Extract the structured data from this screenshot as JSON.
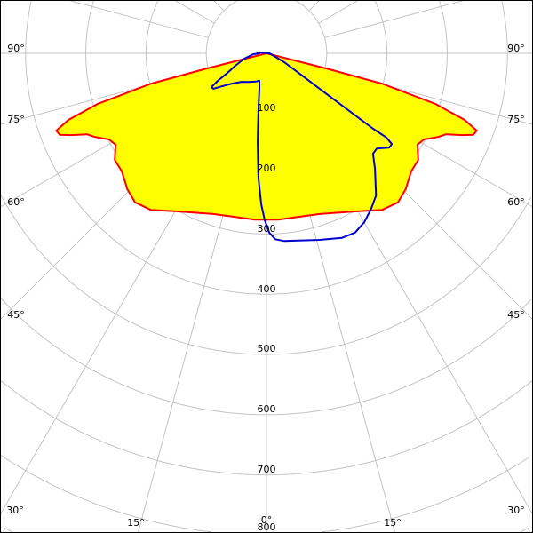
{
  "chart_data": {
    "type": "polar",
    "grid": true,
    "radial_range": [
      0,
      800
    ],
    "radial_ticks": [
      "100",
      "200",
      "300",
      "400",
      "500",
      "600",
      "700",
      "800"
    ],
    "angle_step_deg": 15,
    "angle_labels": {
      "left_90": "90°",
      "right_90": "90°",
      "left_75": "75°",
      "right_75": "75°",
      "left_60": "60°",
      "right_60": "60°",
      "left_45": "45°",
      "right_45": "45°",
      "left_30": "30°",
      "right_30": "30°",
      "left_15": "15°",
      "right_15": "15°",
      "zero": "0°"
    },
    "series": [
      {
        "color": "#ff0000",
        "fill": "#ffff00",
        "symmetric": true,
        "points": [
          [
            90,
            0
          ],
          [
            75.8,
            102
          ],
          [
            75.3,
            198
          ],
          [
            73.3,
            293
          ],
          [
            71.4,
            347
          ],
          [
            69.8,
            372
          ],
          [
            68.5,
            369
          ],
          [
            67.3,
            352
          ],
          [
            65.7,
            327
          ],
          [
            64.0,
            317
          ],
          [
            61.3,
            298
          ],
          [
            58.8,
            293
          ],
          [
            54.9,
            308
          ],
          [
            50.8,
            310
          ],
          [
            45.7,
            323
          ],
          [
            41.4,
            330
          ],
          [
            36.4,
            323
          ],
          [
            29.3,
            301
          ],
          [
            18.3,
            281
          ],
          [
            4.0,
            277
          ],
          [
            0,
            276
          ]
        ]
      },
      {
        "color": "#0000cc",
        "fill": "none",
        "symmetric": false,
        "points": [
          [
            68.2,
            16
          ],
          [
            63.4,
            33
          ],
          [
            58,
            70
          ],
          [
            56.3,
            106
          ],
          [
            55.5,
            143
          ],
          [
            55,
            180
          ],
          [
            54.7,
            217
          ],
          [
            54.9,
            243
          ],
          [
            54.1,
            257
          ],
          [
            52.5,
            257
          ],
          [
            49.2,
            242
          ],
          [
            46.7,
            243
          ],
          [
            43.2,
            263
          ],
          [
            37.6,
            298
          ],
          [
            34,
            311
          ],
          [
            30.1,
            324
          ],
          [
            26.3,
            332
          ],
          [
            22.2,
            331
          ],
          [
            15.9,
            322
          ],
          [
            5.4,
            313
          ],
          [
            2.7,
            309
          ],
          [
            0.9,
            298
          ],
          [
            -0.6,
            277
          ],
          [
            -2.0,
            251
          ],
          [
            -3.7,
            207
          ],
          [
            -5.7,
            148
          ],
          [
            -8.5,
            90
          ],
          [
            -11.3,
            60
          ],
          [
            -14.5,
            47
          ],
          [
            -20.6,
            50
          ],
          [
            -32,
            56
          ],
          [
            -41.2,
            63
          ],
          [
            -48.2,
            75
          ],
          [
            -53.5,
            92
          ],
          [
            -56.3,
            106
          ],
          [
            -58.5,
            107
          ],
          [
            -60.6,
            93
          ],
          [
            -62.9,
            75
          ],
          [
            -68.2,
            56
          ],
          [
            -76.5,
            38
          ],
          [
            -86.2,
            22
          ],
          [
            -90,
            12
          ],
          [
            -95.7,
            15
          ],
          [
            90,
            5
          ]
        ]
      }
    ]
  }
}
